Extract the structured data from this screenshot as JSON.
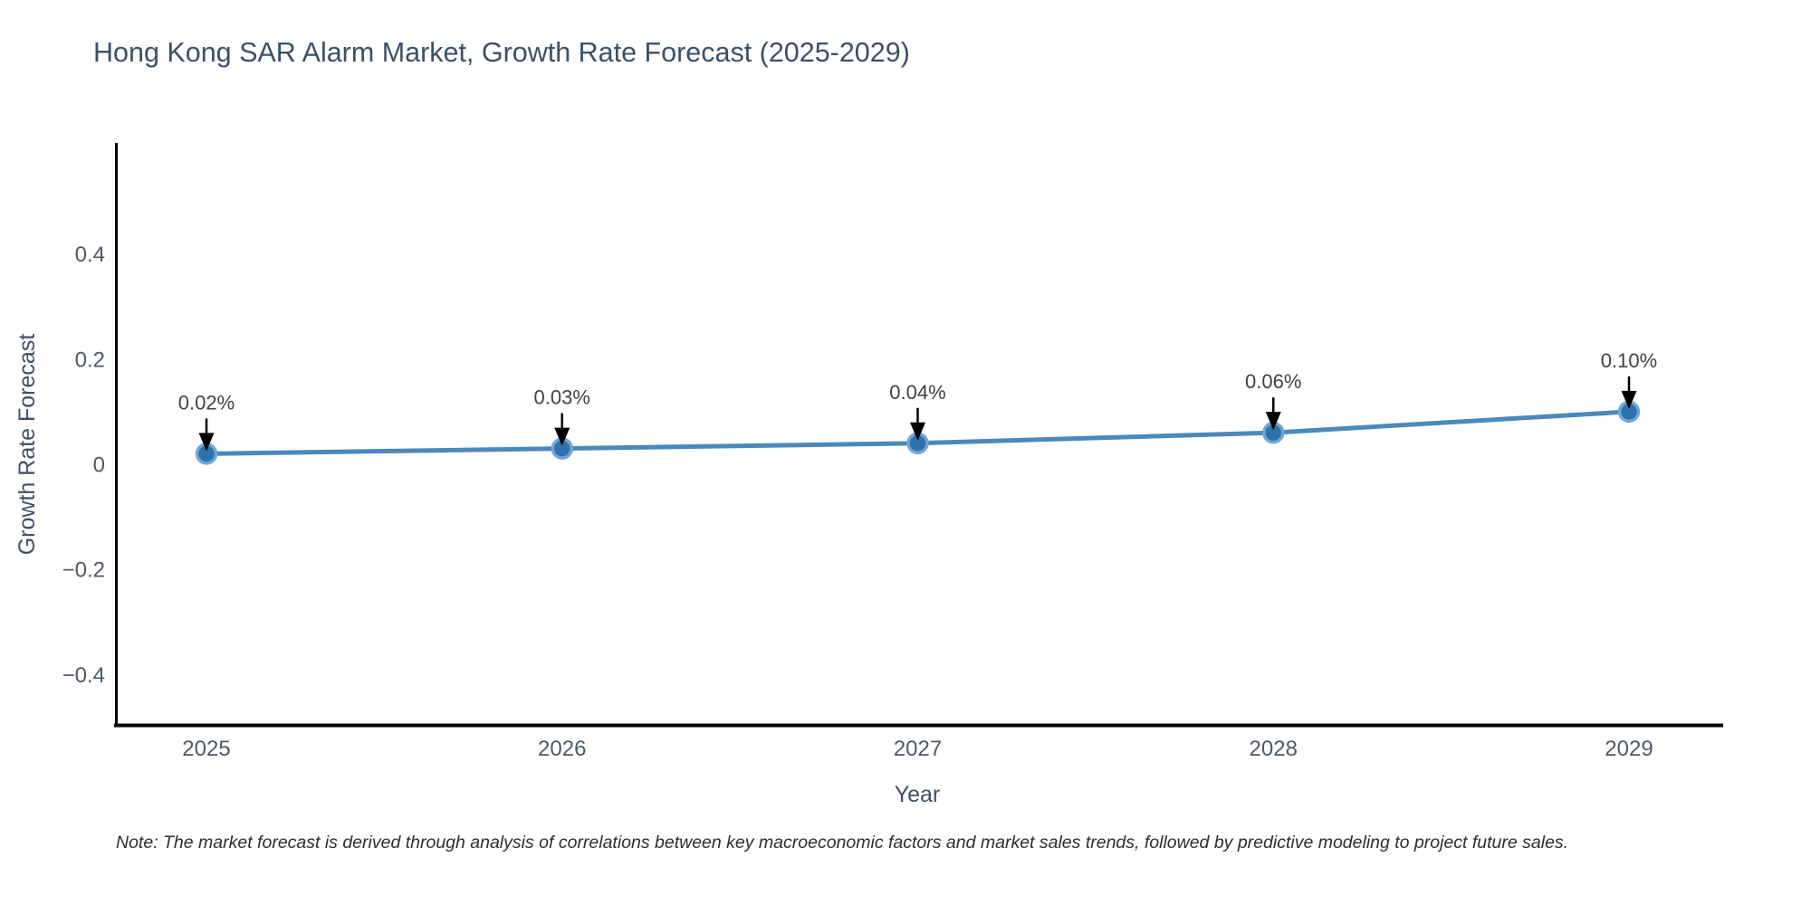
{
  "chart_data": {
    "type": "line",
    "title": "Hong Kong SAR Alarm Market, Growth Rate Forecast (2025-2029)",
    "xlabel": "Year",
    "ylabel": "Growth Rate Forecast",
    "x": [
      2025,
      2026,
      2027,
      2028,
      2029
    ],
    "series": [
      {
        "name": "Growth Rate Forecast",
        "values": [
          0.02,
          0.03,
          0.04,
          0.06,
          0.1
        ]
      }
    ],
    "point_labels": [
      "0.02%",
      "0.03%",
      "0.04%",
      "0.06%",
      "0.10%"
    ],
    "yticks": [
      -0.4,
      -0.2,
      0,
      0.2,
      0.4
    ],
    "ylim": [
      -0.5,
      0.6
    ],
    "xlim_years": [
      2024.75,
      2029.26
    ],
    "grid": false,
    "legend_position": "none",
    "note": "Note: The market forecast is derived through analysis of correlations between key macroeconomic factors and market sales trends, followed by predictive modeling to project future sales.",
    "colors": {
      "line": "#4c88ba",
      "marker_fill": "#2e72ab",
      "marker_ring": "#71a7d6",
      "arrow": "#000000",
      "axis_spine": "#000000",
      "title_text": "#3d5068",
      "tick_text": "#4e5a65",
      "annotation_text": "#3e4247",
      "note_text": "#2e2e2e",
      "background": "#ffffff"
    }
  }
}
